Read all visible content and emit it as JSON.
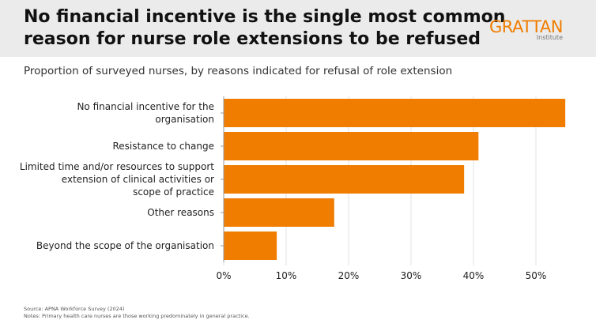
{
  "header": {
    "title": "No financial incentive is the single most common\nreason for nurse role extensions to be refused",
    "logo": "GRATTAN",
    "logo_sub": "Institute"
  },
  "chart_data": {
    "type": "bar",
    "orientation": "horizontal",
    "subtitle": "Proportion of surveyed nurses, by reasons indicated for refusal of role extension",
    "categories": [
      "No financial incentive for the\norganisation",
      "Resistance to change",
      "Limited time and/or resources to support\nextension of clinical activities or\nscope of practice",
      "Other reasons",
      "Beyond the scope of the organisation"
    ],
    "values": [
      54.7,
      40.8,
      38.5,
      17.7,
      8.5
    ],
    "color": "#f07d00",
    "xlim": [
      0,
      55
    ],
    "xticks": [
      {
        "value": 0,
        "label": "0%"
      },
      {
        "value": 10,
        "label": "10%"
      },
      {
        "value": 20,
        "label": "20%"
      },
      {
        "value": 30,
        "label": "30%"
      },
      {
        "value": 40,
        "label": "40%"
      },
      {
        "value": 50,
        "label": "50%"
      }
    ],
    "grid": true
  },
  "footer": {
    "source": "Source: APNA Workforce Survey (2024)",
    "notes": "Notes: Primary health care nurses are those working predominately in general practice."
  }
}
